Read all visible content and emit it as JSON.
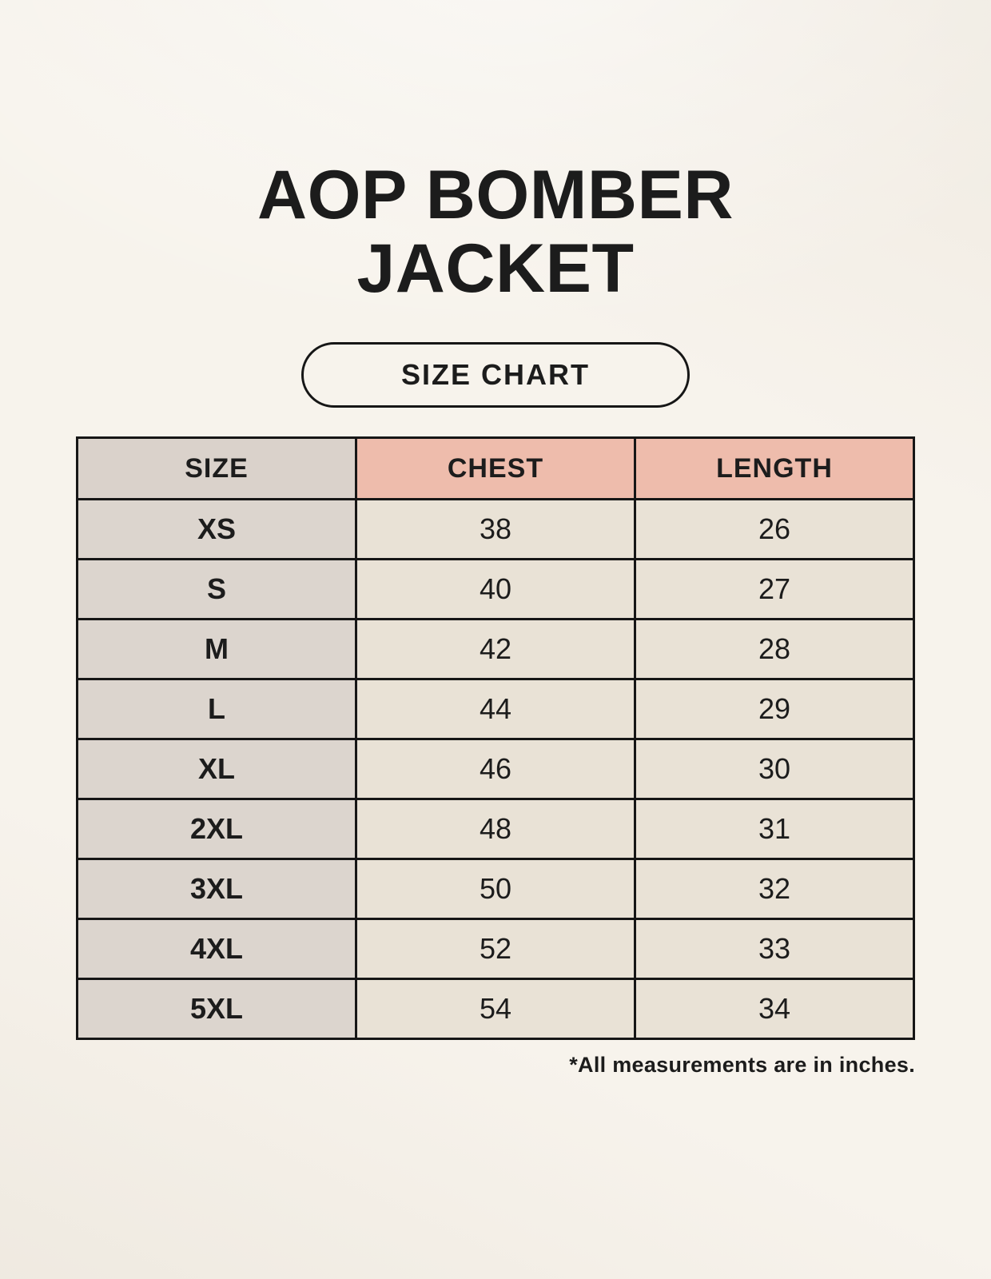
{
  "page": {
    "title": "AOP BOMBER JACKET",
    "badge_label": "SIZE CHART",
    "footnote": "*All measurements are in inches."
  },
  "colors": {
    "page_background": "#f7f3ec",
    "header_size_bg": "#dad2cb",
    "header_measure_bg": "#eebcac",
    "row_label_bg": "#dcd5ce",
    "cell_bg": "#e9e2d6",
    "border": "#161616",
    "text": "#1c1c1c"
  },
  "table": {
    "headers": [
      "SIZE",
      "CHEST",
      "LENGTH"
    ],
    "rows": [
      {
        "size": "XS",
        "chest": "38",
        "length": "26"
      },
      {
        "size": "S",
        "chest": "40",
        "length": "27"
      },
      {
        "size": "M",
        "chest": "42",
        "length": "28"
      },
      {
        "size": "L",
        "chest": "44",
        "length": "29"
      },
      {
        "size": "XL",
        "chest": "46",
        "length": "30"
      },
      {
        "size": "2XL",
        "chest": "48",
        "length": "31"
      },
      {
        "size": "3XL",
        "chest": "50",
        "length": "32"
      },
      {
        "size": "4XL",
        "chest": "52",
        "length": "33"
      },
      {
        "size": "5XL",
        "chest": "54",
        "length": "34"
      }
    ]
  },
  "chart_data": {
    "type": "table",
    "title": "AOP BOMBER JACKET — SIZE CHART",
    "columns": [
      "SIZE",
      "CHEST",
      "LENGTH"
    ],
    "rows": [
      [
        "XS",
        38,
        26
      ],
      [
        "S",
        40,
        27
      ],
      [
        "M",
        42,
        28
      ],
      [
        "L",
        44,
        29
      ],
      [
        "XL",
        46,
        30
      ],
      [
        "2XL",
        48,
        31
      ],
      [
        "3XL",
        50,
        32
      ],
      [
        "4XL",
        52,
        33
      ],
      [
        "5XL",
        54,
        34
      ]
    ],
    "units": "inches",
    "footnote": "*All measurements are in inches."
  }
}
